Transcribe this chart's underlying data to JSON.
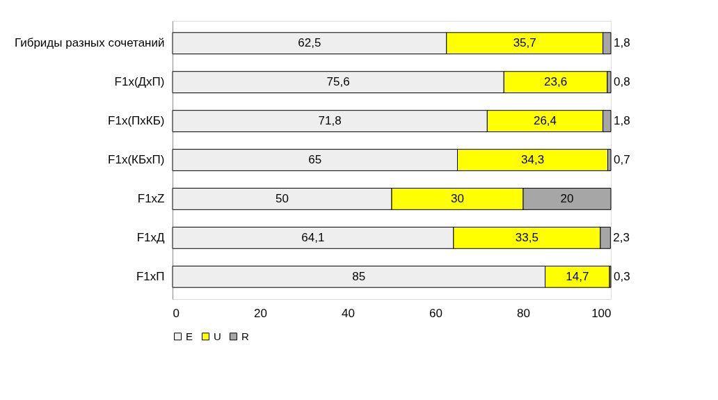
{
  "chart_data": {
    "type": "bar",
    "orientation": "horizontal",
    "stacked": true,
    "categories": [
      "Гибриды разных сочетаний",
      "F1x(ДхП)",
      "F1x(ПхКБ)",
      "F1x(КБхП)",
      "F1xZ",
      "F1xД",
      "F1xП"
    ],
    "series": [
      {
        "name": "E",
        "color": "#eeeeee",
        "values": [
          62.5,
          75.6,
          71.8,
          65,
          50,
          64.1,
          85
        ],
        "value_labels": [
          "62,5",
          "75,6",
          "71,8",
          "65",
          "50",
          "64,1",
          "85"
        ]
      },
      {
        "name": "U",
        "color": "#ffff00",
        "values": [
          35.7,
          23.6,
          26.4,
          34.3,
          30,
          33.5,
          14.7
        ],
        "value_labels": [
          "35,7",
          "23,6",
          "26,4",
          "34,3",
          "30",
          "33,5",
          "14,7"
        ]
      },
      {
        "name": "R",
        "color": "#a6a6a6",
        "values": [
          1.8,
          0.8,
          1.8,
          0.7,
          20,
          2.3,
          0.3
        ],
        "value_labels": [
          "1,8",
          "0,8",
          "1,8",
          "0,7",
          "20",
          "2,3",
          "0,3"
        ]
      }
    ],
    "xlim": [
      0,
      100
    ],
    "xticks": [
      0,
      20,
      40,
      60,
      80,
      100
    ],
    "grid": false,
    "legend": "bottom"
  }
}
